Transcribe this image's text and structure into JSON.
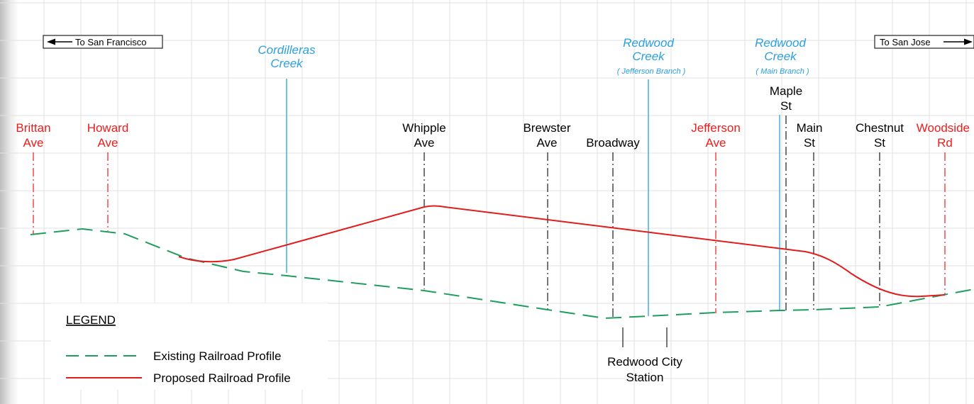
{
  "directions": {
    "left": "To San Francisco",
    "right": "To San Jose"
  },
  "colors": {
    "road_red": "#ee1c1c",
    "road_black": "#1a1a1a",
    "creek_blue": "#2b9fe0",
    "existing_green": "#1e9e5e",
    "proposed_red": "#e21b1b",
    "grid": "#e2e2e2"
  },
  "creeks": [
    {
      "name": "Cordilleras",
      "name2": "Creek",
      "sub": ""
    },
    {
      "name": "Redwood",
      "name2": "Creek",
      "sub": "( Jefferson Branch )"
    },
    {
      "name": "Redwood",
      "name2": "Creek",
      "sub": "( Main Branch )"
    }
  ],
  "streets": [
    {
      "line1": "Brittan",
      "line2": "Ave"
    },
    {
      "line1": "Howard",
      "line2": "Ave"
    },
    {
      "line1": "Whipple",
      "line2": "Ave"
    },
    {
      "line1": "Brewster",
      "line2": "Ave"
    },
    {
      "line1": "Broadway",
      "line2": ""
    },
    {
      "line1": "Jefferson",
      "line2": "Ave"
    },
    {
      "line1": "Maple",
      "line2": "St"
    },
    {
      "line1": "Main",
      "line2": "St"
    },
    {
      "line1": "Chestnut",
      "line2": "St"
    },
    {
      "line1": "Woodside",
      "line2": "Rd"
    }
  ],
  "station": {
    "line1": "Redwood City",
    "line2": "Station"
  },
  "legend": {
    "title": "LEGEND",
    "existing": "Existing Railroad Profile",
    "proposed": "Proposed Railroad Profile"
  }
}
